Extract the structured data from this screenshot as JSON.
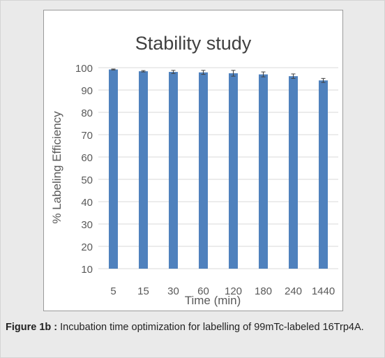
{
  "chart_data": {
    "type": "bar",
    "title": "Stability study",
    "xlabel": "Time (min)",
    "ylabel": "% Labeling Efficiency",
    "categories": [
      "5",
      "15",
      "30",
      "60",
      "120",
      "180",
      "240",
      "1440"
    ],
    "values": [
      99.2,
      98.4,
      98.1,
      97.9,
      97.5,
      97.0,
      96.2,
      94.3
    ],
    "errors": [
      0.2,
      0.3,
      0.7,
      0.9,
      1.3,
      1.1,
      1.0,
      0.9
    ],
    "ylim": [
      10,
      100
    ],
    "yticks": [
      10,
      20,
      30,
      40,
      50,
      60,
      70,
      80,
      90,
      100
    ],
    "grid": true,
    "colors": {
      "bar": "#4f81bd",
      "grid": "#d9d9d9",
      "error": "#404040"
    }
  },
  "caption": {
    "label": "Figure 1b :",
    "text": " Incubation time optimization for labelling of 99mTc-labeled 16Trp4A."
  }
}
